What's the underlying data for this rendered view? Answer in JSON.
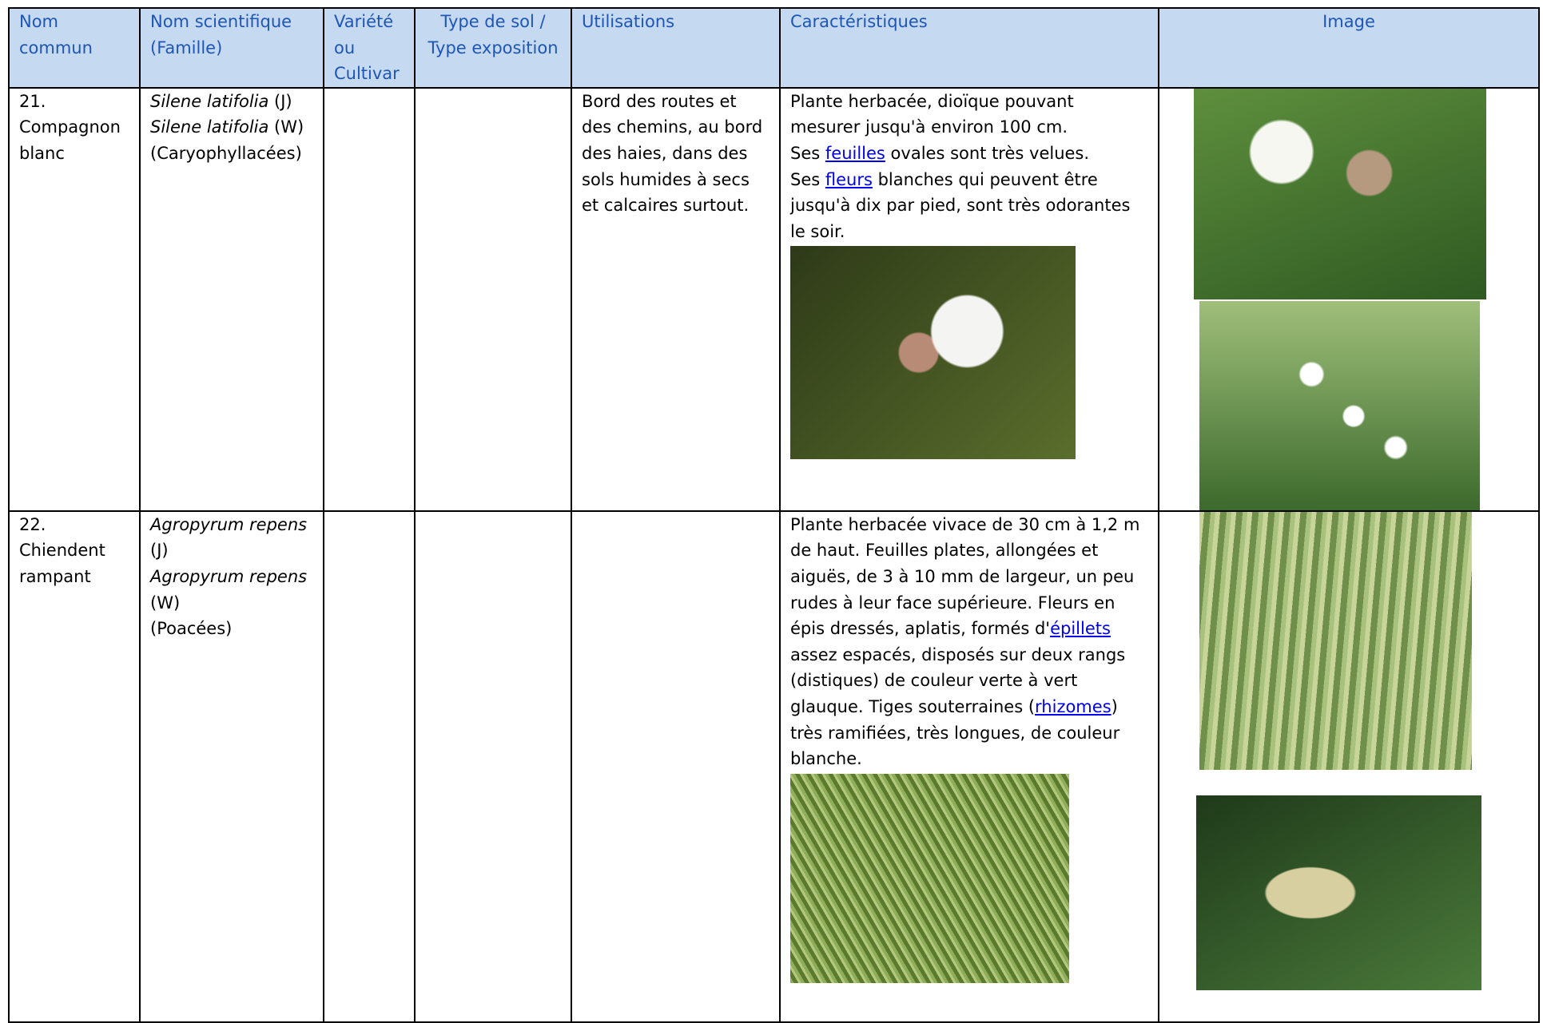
{
  "table": {
    "headers": [
      "Nom commun",
      "Nom scientifique (Famille)",
      "Variété ou Cultivar",
      "Type de sol / Type exposition",
      "Utilisations",
      "Caractéristiques",
      "Image"
    ],
    "rows": [
      {
        "common_name": "21. Compagnon blanc",
        "scientific": [
          [
            {
              "i": "Silene latifolia"
            },
            {
              "t": " (J)"
            }
          ],
          [
            {
              "i": "Silene latifolia"
            },
            {
              "t": " (W)"
            }
          ],
          [
            {
              "t": " (Caryophyllacées)"
            }
          ]
        ],
        "uses": "Bord des routes et des chemins, au bord des haies, dans des sols humides à secs et calcaires surtout.",
        "characteristics": [
          [
            {
              "t": "Plante herbacée, dioïque pouvant mesurer jusqu'à environ 100 cm."
            }
          ],
          [
            {
              "t": "Ses "
            },
            {
              "a": "feuilles"
            },
            {
              "t": " ovales sont très velues."
            }
          ],
          [
            {
              "t": "Ses "
            },
            {
              "a": "fleurs"
            },
            {
              "t": " blanches qui peuvent être jusqu'à dix par pied, sont très odorantes le soir."
            }
          ]
        ]
      },
      {
        "common_name": "22. Chiendent rampant",
        "scientific": [
          [
            {
              "i": "Agropyrum repens"
            },
            {
              "t": " (J)"
            }
          ],
          [
            {
              "i": "Agropyrum repens"
            },
            {
              "t": " (W)"
            }
          ],
          [
            {
              "t": " (Poacées)"
            }
          ]
        ],
        "characteristics": [
          [
            {
              "t": "Plante herbacée vivace de 30 cm à 1,2 m de haut. Feuilles plates, allongées et aiguës, de 3 à 10 mm de largeur, un peu rudes à leur face supérieure. Fleurs en épis dressés, aplatis, formés d'"
            },
            {
              "a": "épillets"
            },
            {
              "t": " assez espacés, disposés sur deux rangs (distiques) de couleur verte à vert glauque. Tiges souterraines ("
            },
            {
              "a": "rhizomes"
            },
            {
              "t": ") très ramifiées, très longues, de couleur blanche."
            }
          ]
        ]
      }
    ]
  }
}
